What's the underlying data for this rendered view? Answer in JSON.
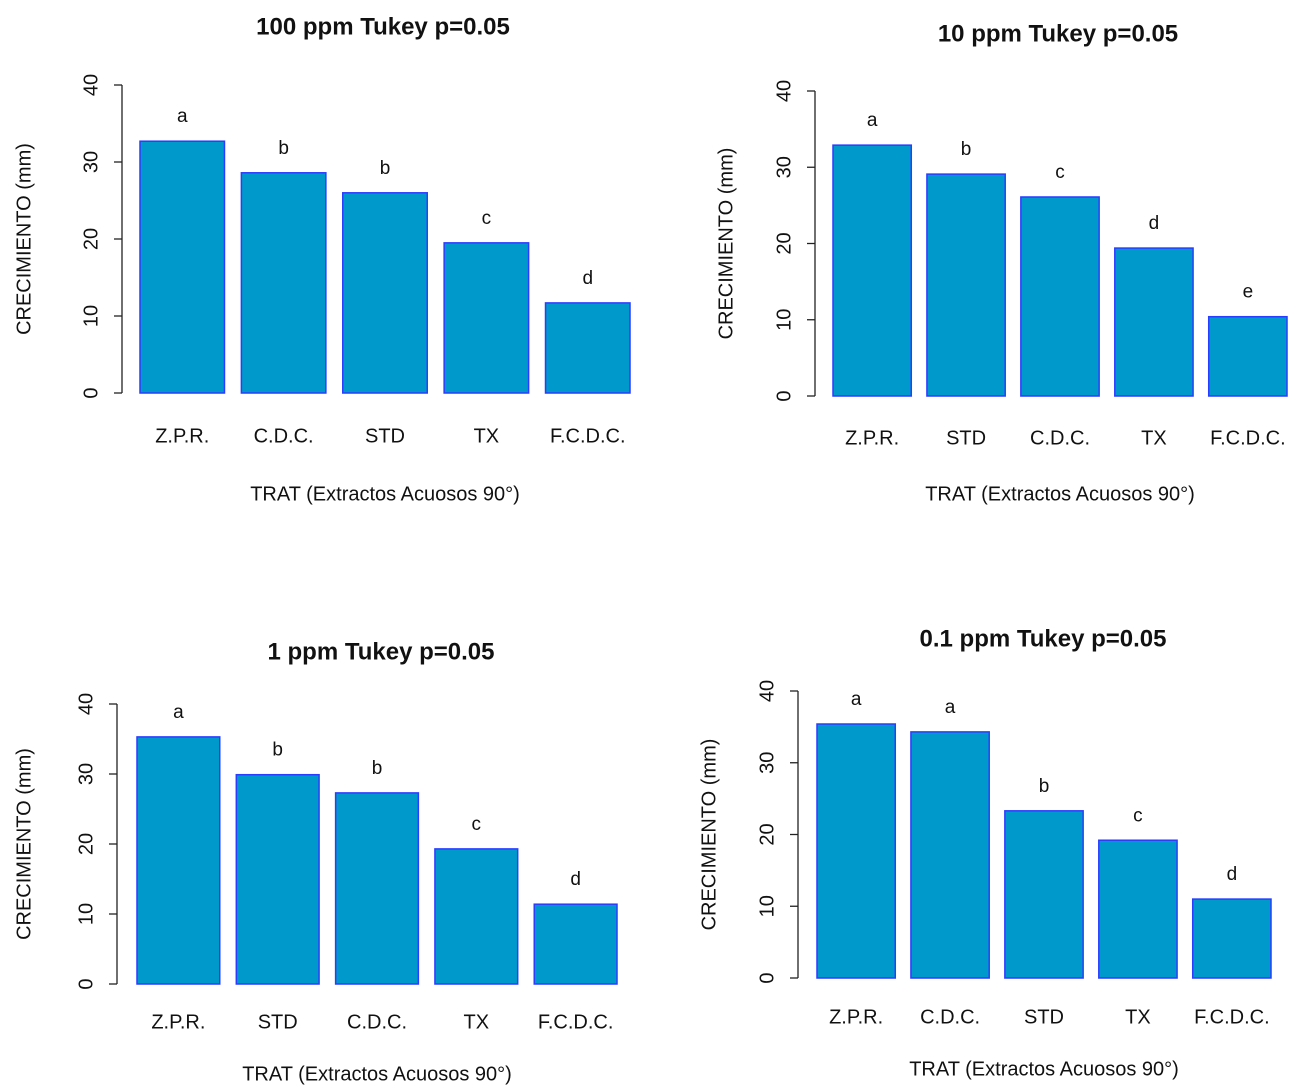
{
  "chart_data": [
    {
      "type": "bar",
      "title": "100 ppm  Tukey p=0.05",
      "xlabel": "TRAT (Extractos Acuosos 90°)",
      "ylabel": "CRECIMIENTO (mm)",
      "categories": [
        "Z.P.R.",
        "C.D.C.",
        "STD",
        "TX",
        "F.C.D.C."
      ],
      "values": [
        32.7,
        28.6,
        26.0,
        19.5,
        11.7
      ],
      "annotations": [
        "a",
        "b",
        "b",
        "c",
        "d"
      ],
      "color": "#0099cc",
      "edge_color": "#2a3cff",
      "ylim": [
        0,
        40
      ],
      "yticks": [
        0,
        10,
        20,
        30,
        40
      ]
    },
    {
      "type": "bar",
      "title": "10 ppm  Tukey p=0.05",
      "xlabel": "TRAT (Extractos Acuosos 90°)",
      "ylabel": "CRECIMIENTO (mm)",
      "categories": [
        "Z.P.R.",
        "STD",
        "C.D.C.",
        "TX",
        "F.C.D.C."
      ],
      "values": [
        32.9,
        29.1,
        26.1,
        19.4,
        10.4
      ],
      "annotations": [
        "a",
        "b",
        "c",
        "d",
        "e"
      ],
      "color": "#0099cc",
      "edge_color": "#2a3cff",
      "ylim": [
        0,
        40
      ],
      "yticks": [
        0,
        10,
        20,
        30,
        40
      ]
    },
    {
      "type": "bar",
      "title": "1 ppm  Tukey p=0.05",
      "xlabel": "TRAT (Extractos Acuosos 90°)",
      "ylabel": "CRECIMIENTO (mm)",
      "categories": [
        "Z.P.R.",
        "STD",
        "C.D.C.",
        "TX",
        "F.C.D.C."
      ],
      "values": [
        35.3,
        29.9,
        27.3,
        19.3,
        11.4
      ],
      "annotations": [
        "a",
        "b",
        "b",
        "c",
        "d"
      ],
      "color": "#0099cc",
      "edge_color": "#2a3cff",
      "ylim": [
        0,
        40
      ],
      "yticks": [
        0,
        10,
        20,
        30,
        40
      ]
    },
    {
      "type": "bar",
      "title": "0.1 ppm  Tukey p=0.05",
      "xlabel": "TRAT (Extractos Acuosos 90°)",
      "ylabel": "CRECIMIENTO (mm)",
      "categories": [
        "Z.P.R.",
        "C.D.C.",
        "STD",
        "TX",
        "F.C.D.C."
      ],
      "values": [
        35.4,
        34.3,
        23.3,
        19.2,
        11.0
      ],
      "annotations": [
        "a",
        "a",
        "b",
        "c",
        "d"
      ],
      "color": "#0099cc",
      "edge_color": "#2a3cff",
      "ylim": [
        0,
        40
      ],
      "yticks": [
        0,
        10,
        20,
        30,
        40
      ]
    }
  ]
}
